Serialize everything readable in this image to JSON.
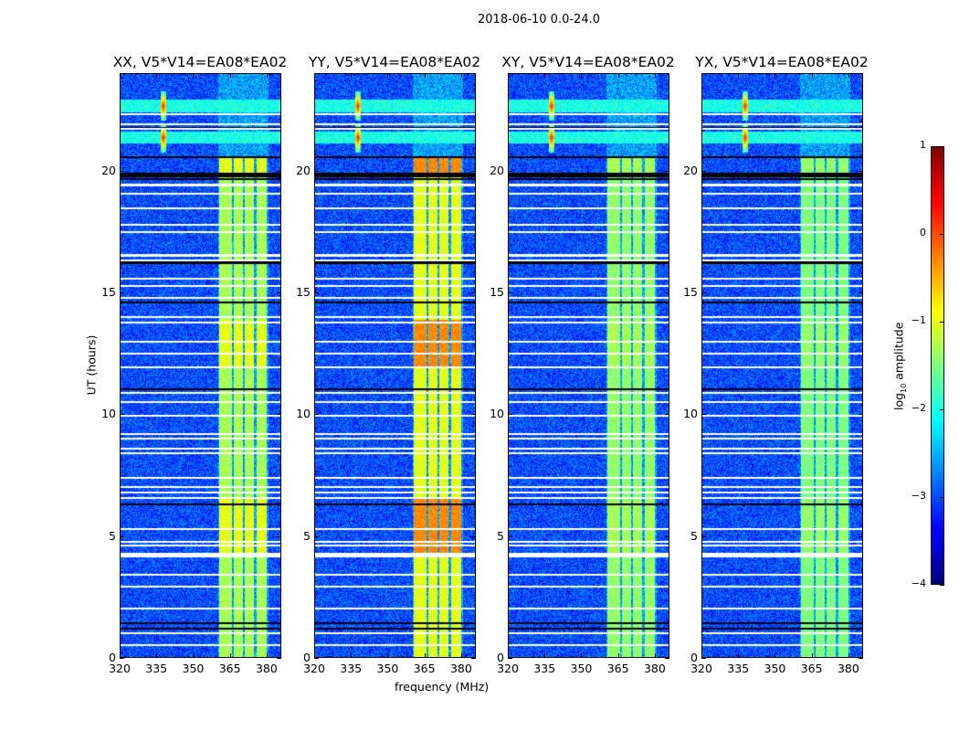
{
  "chart_data": {
    "type": "heatmap",
    "title": "2018-06-10 0.0-24.0",
    "xlabel": "frequency (MHz)",
    "ylabel": "UT (hours)",
    "xlim": [
      320,
      386
    ],
    "ylim": [
      0,
      24
    ],
    "xticks": [
      "320",
      "335",
      "350",
      "365",
      "380"
    ],
    "yticks": [
      "0",
      "5",
      "10",
      "15",
      "20"
    ],
    "panels": [
      {
        "title": "XX, V5*V14=EA08*EA02",
        "band_level": -1.3,
        "hot_level": -1.0
      },
      {
        "title": "YY, V5*V14=EA08*EA02",
        "band_level": -1.0,
        "hot_level": -0.3
      },
      {
        "title": "XY, V5*V14=EA08*EA02",
        "band_level": -1.4,
        "hot_level": -1.3
      },
      {
        "title": "YX, V5*V14=EA08*EA02",
        "band_level": -1.5,
        "hot_level": -1.4
      }
    ],
    "colorbar": {
      "label_prefix": "log",
      "label_sub": "10",
      "label_suffix": " amplitude",
      "range": [
        -4,
        1
      ],
      "ticks": [
        "1",
        "0",
        "−1",
        "−2",
        "−3",
        "−4"
      ],
      "colormap": "jet"
    },
    "features": {
      "background_level": -3.0,
      "rfi_bands_mhz": [
        [
          360.5,
          366
        ],
        [
          366.5,
          370.5
        ],
        [
          371,
          375
        ],
        [
          376,
          380
        ]
      ],
      "flagged_hours_white": [
        0.5,
        1.0,
        2.0,
        2.9,
        3.4,
        4.15,
        4.25,
        4.6,
        4.75,
        5.3,
        6.55,
        6.8,
        7.0,
        7.4,
        8.4,
        8.6,
        9.0,
        9.2,
        9.95,
        10.5,
        10.9,
        11.95,
        12.5,
        13.0,
        13.8,
        14.0,
        14.8,
        15.3,
        15.6,
        16.35,
        16.55,
        17.5,
        17.8,
        18.5,
        19.1,
        19.45,
        21.75,
        21.95,
        22.35
      ],
      "flagged_hours_black": [
        1.2,
        1.4,
        6.3,
        11.05,
        14.6,
        16.25,
        19.7,
        19.8,
        19.9,
        20.6,
        21.8
      ],
      "spike_freq_mhz": 337.5,
      "spike_hours": [
        21.4,
        22.7
      ],
      "hot_hours": [
        [
          4.2,
          6.6
        ],
        [
          11.9,
          13.9
        ],
        [
          19.9,
          20.6
        ]
      ]
    }
  }
}
